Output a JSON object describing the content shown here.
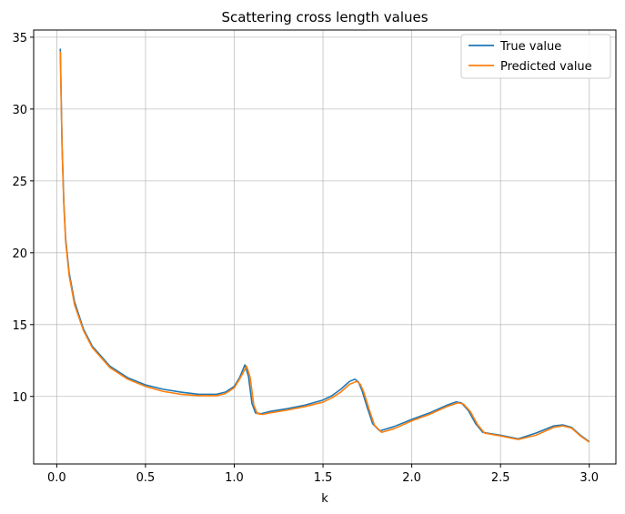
{
  "chart_data": {
    "type": "line",
    "title": "Scattering cross length values",
    "xlabel": "k",
    "ylabel": "",
    "xlim": [
      -0.13,
      3.15
    ],
    "ylim": [
      5.3,
      35.5
    ],
    "xticks": [
      0.0,
      0.5,
      1.0,
      1.5,
      2.0,
      2.5,
      3.0
    ],
    "xtick_labels": [
      "0.0",
      "0.5",
      "1.0",
      "1.5",
      "2.0",
      "2.5",
      "3.0"
    ],
    "yticks": [
      10,
      15,
      20,
      25,
      30,
      35
    ],
    "ytick_labels": [
      "10",
      "15",
      "20",
      "25",
      "30",
      "35"
    ],
    "grid": true,
    "legend_position": "top-right",
    "series": [
      {
        "name": "True value",
        "color": "#1f77b4",
        "points": [
          [
            0.02,
            34.2
          ],
          [
            0.03,
            27.5
          ],
          [
            0.04,
            23.5
          ],
          [
            0.05,
            21.0
          ],
          [
            0.07,
            18.6
          ],
          [
            0.1,
            16.6
          ],
          [
            0.15,
            14.7
          ],
          [
            0.2,
            13.5
          ],
          [
            0.3,
            12.1
          ],
          [
            0.4,
            11.3
          ],
          [
            0.5,
            10.8
          ],
          [
            0.6,
            10.5
          ],
          [
            0.7,
            10.3
          ],
          [
            0.8,
            10.15
          ],
          [
            0.9,
            10.15
          ],
          [
            0.95,
            10.3
          ],
          [
            1.0,
            10.7
          ],
          [
            1.03,
            11.3
          ],
          [
            1.06,
            12.2
          ],
          [
            1.08,
            11.4
          ],
          [
            1.1,
            9.5
          ],
          [
            1.12,
            8.85
          ],
          [
            1.15,
            8.8
          ],
          [
            1.2,
            8.95
          ],
          [
            1.3,
            9.15
          ],
          [
            1.4,
            9.4
          ],
          [
            1.5,
            9.75
          ],
          [
            1.55,
            10.05
          ],
          [
            1.6,
            10.5
          ],
          [
            1.65,
            11.05
          ],
          [
            1.68,
            11.2
          ],
          [
            1.7,
            11.0
          ],
          [
            1.72,
            10.4
          ],
          [
            1.75,
            9.2
          ],
          [
            1.78,
            8.1
          ],
          [
            1.82,
            7.6
          ],
          [
            1.9,
            7.9
          ],
          [
            2.0,
            8.4
          ],
          [
            2.1,
            8.85
          ],
          [
            2.2,
            9.4
          ],
          [
            2.25,
            9.62
          ],
          [
            2.28,
            9.55
          ],
          [
            2.32,
            9.0
          ],
          [
            2.36,
            8.1
          ],
          [
            2.4,
            7.5
          ],
          [
            2.5,
            7.3
          ],
          [
            2.6,
            7.05
          ],
          [
            2.7,
            7.45
          ],
          [
            2.8,
            7.95
          ],
          [
            2.85,
            8.02
          ],
          [
            2.9,
            7.85
          ],
          [
            2.95,
            7.3
          ],
          [
            3.0,
            6.85
          ]
        ]
      },
      {
        "name": "Predicted value",
        "color": "#ff7f0e",
        "points": [
          [
            0.02,
            34.0
          ],
          [
            0.03,
            27.3
          ],
          [
            0.04,
            23.3
          ],
          [
            0.05,
            20.8
          ],
          [
            0.07,
            18.4
          ],
          [
            0.1,
            16.4
          ],
          [
            0.15,
            14.6
          ],
          [
            0.2,
            13.4
          ],
          [
            0.3,
            12.0
          ],
          [
            0.4,
            11.2
          ],
          [
            0.5,
            10.7
          ],
          [
            0.6,
            10.35
          ],
          [
            0.7,
            10.15
          ],
          [
            0.8,
            10.05
          ],
          [
            0.9,
            10.05
          ],
          [
            0.95,
            10.2
          ],
          [
            1.0,
            10.6
          ],
          [
            1.03,
            11.2
          ],
          [
            1.07,
            12.1
          ],
          [
            1.09,
            11.3
          ],
          [
            1.11,
            9.4
          ],
          [
            1.13,
            8.8
          ],
          [
            1.16,
            8.75
          ],
          [
            1.2,
            8.85
          ],
          [
            1.3,
            9.05
          ],
          [
            1.4,
            9.3
          ],
          [
            1.5,
            9.6
          ],
          [
            1.55,
            9.9
          ],
          [
            1.6,
            10.3
          ],
          [
            1.65,
            10.85
          ],
          [
            1.69,
            11.05
          ],
          [
            1.71,
            10.85
          ],
          [
            1.73,
            10.3
          ],
          [
            1.76,
            9.1
          ],
          [
            1.79,
            8.0
          ],
          [
            1.83,
            7.5
          ],
          [
            1.9,
            7.75
          ],
          [
            2.0,
            8.3
          ],
          [
            2.1,
            8.75
          ],
          [
            2.2,
            9.3
          ],
          [
            2.26,
            9.55
          ],
          [
            2.29,
            9.48
          ],
          [
            2.33,
            8.95
          ],
          [
            2.37,
            8.05
          ],
          [
            2.41,
            7.45
          ],
          [
            2.5,
            7.25
          ],
          [
            2.6,
            7.0
          ],
          [
            2.7,
            7.3
          ],
          [
            2.8,
            7.85
          ],
          [
            2.85,
            7.95
          ],
          [
            2.9,
            7.8
          ],
          [
            2.95,
            7.25
          ],
          [
            3.0,
            6.82
          ]
        ]
      }
    ]
  }
}
